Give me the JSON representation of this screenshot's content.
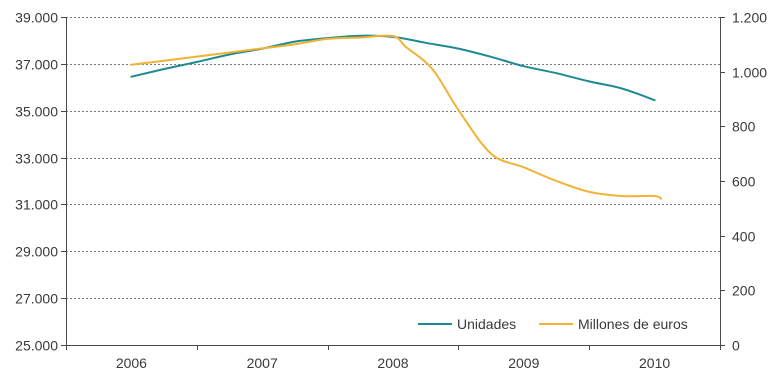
{
  "chart_data": {
    "type": "line",
    "x_categories": [
      "2006",
      "2007",
      "2008",
      "2009",
      "2010"
    ],
    "left_axis": {
      "ylim": [
        25000,
        39000
      ],
      "ticks": [
        25000,
        27000,
        29000,
        31000,
        33000,
        35000,
        37000,
        39000
      ],
      "tick_labels": [
        "25.000",
        "27.000",
        "29.000",
        "31.000",
        "33.000",
        "35.000",
        "37.000",
        "39.000"
      ]
    },
    "right_axis": {
      "ylim": [
        0,
        1200
      ],
      "ticks": [
        0,
        200,
        400,
        600,
        800,
        1000,
        1200
      ],
      "tick_labels": [
        "0",
        "200",
        "400",
        "600",
        "800",
        "1.000",
        "1.200"
      ]
    },
    "grid": "horizontal dotted",
    "legend_position": "bottom-right",
    "series": [
      {
        "name": "Unidades",
        "axis": "left",
        "color": "#1f8a93",
        "points": [
          [
            2006.0,
            36450
          ],
          [
            2006.25,
            36780
          ],
          [
            2006.5,
            37080
          ],
          [
            2006.75,
            37400
          ],
          [
            2007.0,
            37650
          ],
          [
            2007.25,
            37950
          ],
          [
            2007.5,
            38100
          ],
          [
            2007.75,
            38200
          ],
          [
            2008.0,
            38150
          ],
          [
            2008.25,
            37900
          ],
          [
            2008.5,
            37650
          ],
          [
            2008.75,
            37300
          ],
          [
            2009.0,
            36900
          ],
          [
            2009.25,
            36600
          ],
          [
            2009.5,
            36250
          ],
          [
            2009.75,
            35950
          ],
          [
            2010.0,
            35450
          ]
        ]
      },
      {
        "name": "Millones de euros",
        "axis": "right",
        "color": "#f2b234",
        "points": [
          [
            2006.0,
            1025
          ],
          [
            2006.25,
            1040
          ],
          [
            2006.5,
            1055
          ],
          [
            2006.75,
            1070
          ],
          [
            2007.0,
            1085
          ],
          [
            2007.25,
            1100
          ],
          [
            2007.5,
            1120
          ],
          [
            2007.75,
            1125
          ],
          [
            2008.0,
            1130
          ],
          [
            2008.1,
            1090
          ],
          [
            2008.3,
            1010
          ],
          [
            2008.5,
            860
          ],
          [
            2008.75,
            700
          ],
          [
            2009.0,
            650
          ],
          [
            2009.25,
            600
          ],
          [
            2009.5,
            560
          ],
          [
            2009.75,
            545
          ],
          [
            2010.0,
            545
          ],
          [
            2010.05,
            535
          ]
        ]
      }
    ]
  }
}
